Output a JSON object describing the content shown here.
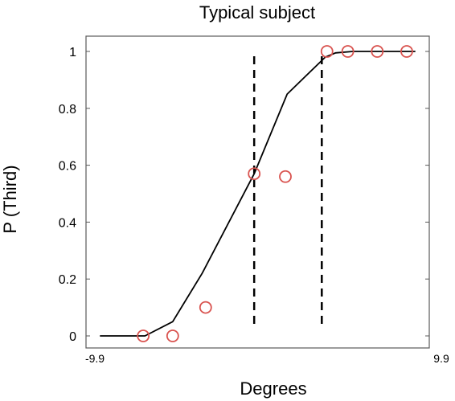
{
  "chart_data": {
    "type": "scatter",
    "title": "Typical subject",
    "xlabel": "Degrees",
    "ylabel": "P (Third)",
    "xlim": [
      -9.9,
      9.9
    ],
    "ylim": [
      0,
      1
    ],
    "x_tick_labels": [
      "-9.9",
      "9.9"
    ],
    "y_ticks": [
      0,
      0.2,
      0.4,
      0.6,
      0.8,
      1
    ],
    "y_tick_labels": [
      "0",
      "0.2",
      "0.4",
      "0.6",
      "0.8",
      "1"
    ],
    "grid": false,
    "series": [
      {
        "kind": "observed",
        "marker": "circle",
        "color": "#d9534f",
        "x": [
          -6.6,
          -4.9,
          -3.0,
          -0.2,
          1.6,
          4.0,
          5.2,
          6.9,
          8.6
        ],
        "y": [
          0,
          0,
          0.1,
          0.57,
          0.56,
          1,
          1,
          1,
          1
        ]
      },
      {
        "kind": "fit",
        "style": "solid",
        "color": "#000000",
        "x": [
          -9.1,
          -6.5,
          -4.9,
          -3.2,
          -0.2,
          1.7,
          3.9,
          4.5,
          5.5,
          6.5,
          7.5,
          9.1
        ],
        "y": [
          0,
          0,
          0.05,
          0.22,
          0.57,
          0.85,
          0.98,
          0.995,
          1,
          1,
          1,
          1
        ]
      }
    ],
    "reference_lines": [
      {
        "orientation": "vertical",
        "style": "dashed",
        "x": -0.2,
        "color": "#000000"
      },
      {
        "orientation": "vertical",
        "style": "dashed",
        "x": 3.7,
        "color": "#000000"
      }
    ]
  }
}
